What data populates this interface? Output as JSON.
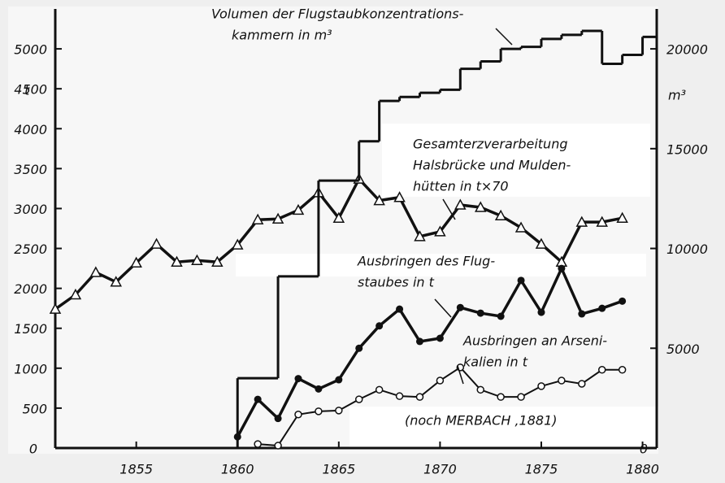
{
  "chart_data": {
    "type": "line",
    "xlim": [
      1851,
      1880.7
    ],
    "xticks": [
      1855,
      1860,
      1865,
      1870,
      1875,
      1880
    ],
    "ylim": [
      0,
      5500
    ],
    "yticks": [
      0,
      500,
      1000,
      1500,
      2000,
      2500,
      3000,
      3500,
      4000,
      4500,
      5000
    ],
    "y2lim": [
      0,
      22000
    ],
    "y2ticks": [
      0,
      5000,
      10000,
      15000,
      20000
    ],
    "ylabel": "t",
    "y2label": "m³",
    "grid": false,
    "series": [
      {
        "label_lines": [
          "Gesamterzverarbeitung",
          "Halsbrücke und Mulden-",
          "hütten in  t×70"
        ],
        "marker": "triangle",
        "color": "#111111",
        "x": [
          1851,
          1852,
          1853,
          1854,
          1855,
          1856,
          1857,
          1858,
          1859,
          1860,
          1861,
          1862,
          1863,
          1864,
          1865,
          1866,
          1867,
          1868,
          1869,
          1870,
          1871,
          1872,
          1873,
          1874,
          1875,
          1876,
          1877,
          1878,
          1879
        ],
        "values": [
          1740,
          1920,
          2200,
          2080,
          2320,
          2555,
          2330,
          2350,
          2330,
          2545,
          2860,
          2870,
          2980,
          3200,
          2880,
          3370,
          3100,
          3140,
          2650,
          2710,
          3045,
          3015,
          2910,
          2760,
          2555,
          2330,
          2830,
          2830,
          2880
        ]
      },
      {
        "label_lines": [
          "Ausbringen des Flug-",
          "staubes in t"
        ],
        "marker": "dot",
        "color": "#111111",
        "x": [
          1860,
          1861,
          1862,
          1863,
          1864,
          1865,
          1866,
          1867,
          1868,
          1869,
          1870,
          1871,
          1872,
          1873,
          1874,
          1875,
          1876,
          1877,
          1878,
          1879
        ],
        "values": [
          140,
          610,
          370,
          870,
          740,
          855,
          1250,
          1530,
          1740,
          1335,
          1375,
          1760,
          1690,
          1650,
          2100,
          1700,
          2250,
          1680,
          1750,
          1840
        ]
      },
      {
        "label_lines": [
          "Ausbringen an Arseni-",
          "kalien  in  t"
        ],
        "marker": "circle",
        "color": "#111111",
        "x": [
          1861,
          1862,
          1863,
          1864,
          1865,
          1866,
          1867,
          1868,
          1869,
          1870,
          1871,
          1872,
          1873,
          1874,
          1875,
          1876,
          1877,
          1878,
          1879
        ],
        "values": [
          50,
          30,
          420,
          460,
          470,
          610,
          730,
          650,
          640,
          845,
          1010,
          730,
          640,
          640,
          775,
          845,
          805,
          980,
          980
        ]
      },
      {
        "label_lines": [
          "Volumen der Flugstaubkonzentrations-",
          "kammern  in  m³"
        ],
        "marker": "step",
        "axis": "y2",
        "color": "#111111",
        "x": [
          1860,
          1862,
          1864,
          1866,
          1867,
          1868,
          1869,
          1870,
          1871,
          1872,
          1873,
          1874,
          1875,
          1876,
          1877,
          1878,
          1879,
          1880
        ],
        "values": [
          3500,
          8600,
          13400,
          15370,
          17390,
          17590,
          17800,
          17950,
          19000,
          19370,
          20000,
          20100,
          20500,
          20700,
          20900,
          19250,
          19700,
          20600
        ]
      }
    ],
    "note": "(noch MERBACH ,1881)"
  }
}
